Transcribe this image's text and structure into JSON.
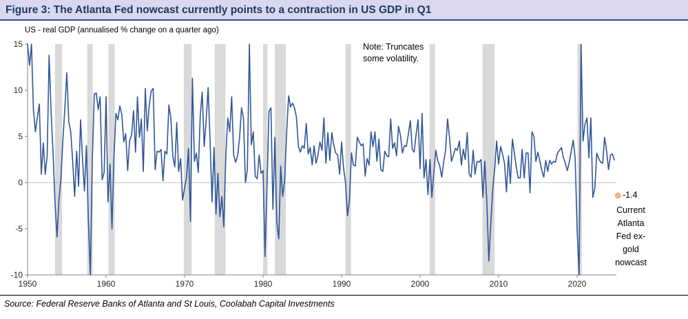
{
  "chart_data": {
    "type": "line",
    "title": "Figure 3: The Atlanta Fed nowcast currently points to a contraction in US GDP in Q1",
    "subtitle": "US - real GDP (annualised % change on a quarter ago)",
    "note": "Note: Truncates some volatility.",
    "source": "Source: Federal Reserve Banks of Atlanta and St Louis, Coolabah Capital Investments",
    "xlim": [
      1950,
      2025
    ],
    "ylim": [
      -10,
      15
    ],
    "xticks": [
      1950,
      1960,
      1970,
      1980,
      1990,
      2000,
      2010,
      2020
    ],
    "yticks": [
      -10,
      -5,
      0,
      5,
      10,
      15
    ],
    "grid": "off",
    "colors": {
      "line": "#2f5597",
      "recession": "#d9d9d9",
      "zero_line": "#bfbfbf",
      "axis": "#808080",
      "dot": "#f4b183",
      "title_bg": "#d9d8ee",
      "title_text": "#1f3864",
      "title_border": "#2e4d9b"
    },
    "recessions": [
      [
        1953.5,
        1954.4
      ],
      [
        1957.6,
        1958.3
      ],
      [
        1960.3,
        1961.1
      ],
      [
        1969.9,
        1970.9
      ],
      [
        1973.85,
        1975.2
      ],
      [
        1980.0,
        1980.55
      ],
      [
        1981.5,
        1982.9
      ],
      [
        1990.5,
        1991.2
      ],
      [
        2001.2,
        2001.9
      ],
      [
        2007.95,
        2009.5
      ],
      [
        2020.05,
        2020.6
      ]
    ],
    "series": [
      {
        "name": "US real GDP (annualised % change on a quarter ago, truncated)",
        "start_year": 1950,
        "period": 0.25,
        "values": [
          15,
          12.7,
          15,
          7.9,
          5.5,
          7.1,
          8.5,
          0.9,
          4.3,
          0.9,
          2.9,
          13.8,
          7.6,
          3.1,
          -2.2,
          -5.9,
          -1.9,
          0.4,
          4.6,
          8.1,
          11.9,
          6.6,
          5.5,
          2.4,
          -1.5,
          3.4,
          -0.4,
          6.8,
          2.6,
          -0.9,
          4.0,
          -4.1,
          -10,
          2.6,
          9.6,
          9.7,
          7.9,
          9.3,
          0.3,
          1.1,
          9.3,
          -2.1,
          2.0,
          -5.0,
          2.7,
          7.5,
          6.8,
          8.3,
          7.4,
          4.4,
          5.3,
          1.3,
          4.5,
          5.2,
          7.8,
          3.3,
          9.3,
          4.9,
          6.9,
          1.2,
          10.2,
          5.6,
          8.4,
          9.9,
          10.2,
          1.4,
          3.4,
          3.3,
          3.6,
          0.2,
          3.4,
          3.1,
          8.4,
          7.0,
          2.9,
          1.7,
          6.5,
          1.2,
          2.6,
          -1.9,
          -0.6,
          0.6,
          3.7,
          -4.2,
          11.3,
          2.3,
          3.2,
          1.1,
          7.3,
          9.8,
          3.9,
          6.8,
          10.3,
          4.4,
          -2.1,
          3.8,
          -3.4,
          1.0,
          -3.7,
          -1.5,
          -4.8,
          3.0,
          7.0,
          5.5,
          9.3,
          3.0,
          2.2,
          2.9,
          4.8,
          8.1,
          7.0,
          0.0,
          1.4,
          15,
          4.1,
          5.5,
          0.7,
          0.4,
          3.0,
          1.0,
          1.3,
          -8.0,
          -0.5,
          7.7,
          8.1,
          -2.9,
          4.9,
          -4.3,
          -6.1,
          1.8,
          -1.5,
          0.2,
          5.4,
          9.4,
          8.2,
          8.6,
          8.1,
          7.1,
          3.9,
          3.3,
          4.0,
          3.7,
          6.4,
          3.1,
          3.8,
          1.9,
          4.0,
          2.1,
          3.0,
          4.4,
          3.5,
          7.0,
          2.1,
          5.4,
          2.4,
          5.4,
          4.1,
          3.2,
          3.0,
          0.9,
          4.4,
          1.6,
          0.0,
          -3.6,
          -1.9,
          3.2,
          1.9,
          1.8,
          4.9,
          4.4,
          4.0,
          4.2,
          0.7,
          2.6,
          1.9,
          5.5,
          3.9,
          5.5,
          2.3,
          4.7,
          1.4,
          1.2,
          3.4,
          2.9,
          2.8,
          6.9,
          3.7,
          4.3,
          2.9,
          6.1,
          5.1,
          3.2,
          4.0,
          3.9,
          5.2,
          6.7,
          3.6,
          3.3,
          5.3,
          6.8,
          1.5,
          7.5,
          0.5,
          2.5,
          -1.3,
          2.5,
          -1.6,
          1.1,
          3.5,
          2.4,
          1.8,
          0.6,
          2.2,
          3.5,
          6.9,
          4.8,
          2.3,
          3.0,
          3.7,
          3.5,
          4.5,
          1.9,
          3.6,
          2.5,
          5.4,
          0.9,
          0.6,
          3.5,
          0.9,
          2.3,
          2.2,
          2.5,
          -1.6,
          2.3,
          -2.1,
          -8.5,
          -4.5,
          -0.7,
          1.5,
          4.5,
          2.0,
          3.9,
          3.1,
          2.1,
          -1.0,
          2.9,
          -0.1,
          4.7,
          3.2,
          1.7,
          0.5,
          0.5,
          3.6,
          0.5,
          3.2,
          3.2,
          -1.1,
          5.5,
          5.0,
          2.3,
          3.3,
          2.3,
          1.3,
          0.6,
          2.4,
          1.2,
          2.4,
          2.0,
          2.3,
          2.2,
          3.2,
          3.5,
          3.8,
          2.7,
          2.1,
          1.3,
          2.2,
          3.4,
          4.6,
          2.6,
          -5.1,
          -10,
          15,
          4.5,
          6.3,
          7.0,
          2.7,
          7.0,
          -1.6,
          -0.6,
          3.2,
          2.6,
          2.2,
          2.1,
          4.9,
          3.4,
          1.4,
          3.0,
          3.1,
          2.4
        ]
      }
    ],
    "nowcast": {
      "value": -1.4,
      "value_label": "-1.4",
      "label": "Current Atlanta Fed ex-gold nowcast",
      "x": 2025.2
    }
  }
}
